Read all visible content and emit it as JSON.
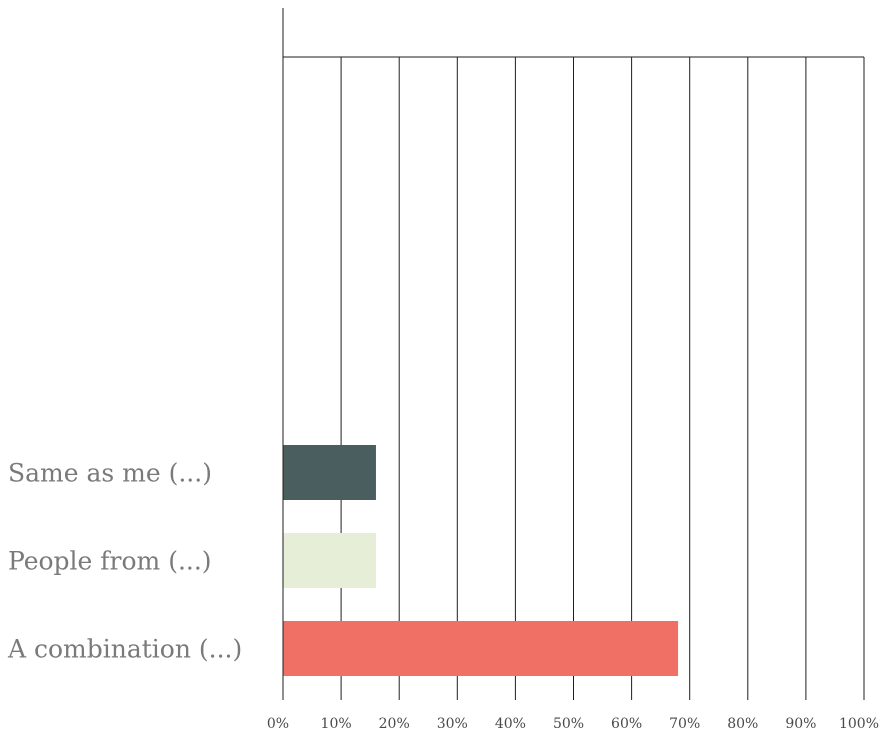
{
  "chart_data": {
    "type": "bar",
    "orientation": "horizontal",
    "categories": [
      "Same as me (...)",
      "People from (...)",
      "A combination (...)"
    ],
    "values": [
      16,
      16,
      68
    ],
    "colors": [
      "#4a5e60",
      "#e6eed8",
      "#f07065"
    ],
    "xlim": [
      0,
      100
    ],
    "xticks": [
      "0%",
      "10%",
      "20%",
      "30%",
      "40%",
      "50%",
      "60%",
      "70%",
      "80%",
      "90%",
      "100%"
    ],
    "title": "",
    "xlabel": "",
    "ylabel": "",
    "grid": true,
    "legend": "none"
  }
}
